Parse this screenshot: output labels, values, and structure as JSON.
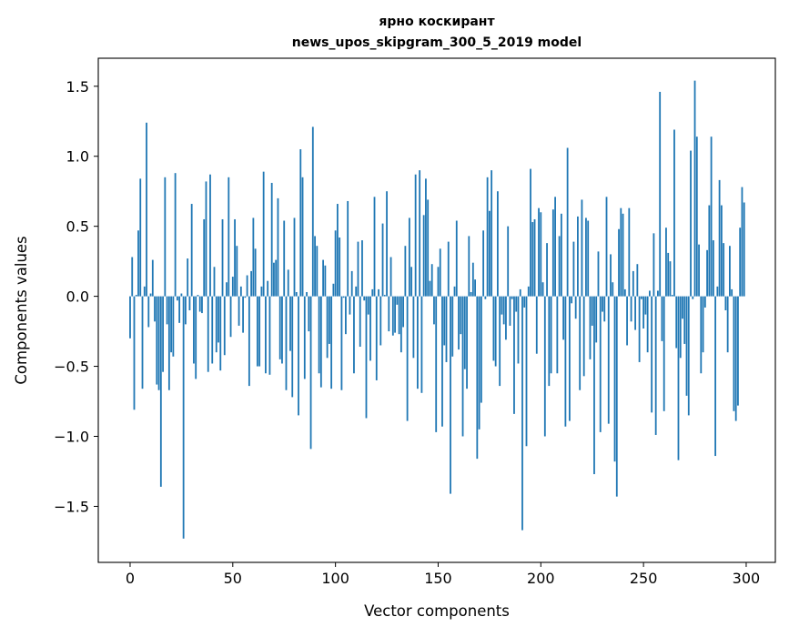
{
  "chart_data": {
    "type": "bar",
    "title": [
      "ярно коскирант",
      "news_upos_skipgram_300_5_2019 model"
    ],
    "xlabel": "Vector components",
    "ylabel": "Components values",
    "xlim": [
      -15.5,
      314.2
    ],
    "ylim": [
      -1.9,
      1.7
    ],
    "grid": false,
    "bar_color": "#1f77b4",
    "xticks": [
      {
        "value": 0,
        "label": "0"
      },
      {
        "value": 50,
        "label": "50"
      },
      {
        "value": 100,
        "label": "100"
      },
      {
        "value": 150,
        "label": "150"
      },
      {
        "value": 200,
        "label": "200"
      },
      {
        "value": 250,
        "label": "250"
      },
      {
        "value": 300,
        "label": "300"
      }
    ],
    "yticks": [
      {
        "value": -1.5,
        "label": "−1.5"
      },
      {
        "value": -1.0,
        "label": "−1.0"
      },
      {
        "value": -0.5,
        "label": "−0.5"
      },
      {
        "value": 0.0,
        "label": "0.0"
      },
      {
        "value": 0.5,
        "label": "0.5"
      },
      {
        "value": 1.0,
        "label": "1.0"
      },
      {
        "value": 1.5,
        "label": "1.5"
      }
    ],
    "values": [
      -0.3,
      0.28,
      -0.81,
      0.01,
      0.47,
      0.84,
      -0.66,
      0.07,
      1.24,
      -0.22,
      0.02,
      0.26,
      -0.18,
      -0.63,
      -0.67,
      -1.36,
      -0.54,
      0.85,
      -0.2,
      -0.67,
      -0.4,
      -0.43,
      0.88,
      -0.03,
      -0.19,
      0.02,
      -1.73,
      -0.2,
      0.27,
      -0.1,
      0.66,
      -0.48,
      -0.59,
      0.01,
      -0.11,
      -0.12,
      0.55,
      0.82,
      -0.54,
      0.87,
      -0.48,
      0.21,
      -0.4,
      -0.33,
      -0.53,
      0.55,
      -0.42,
      0.1,
      0.85,
      -0.29,
      0.14,
      0.55,
      0.36,
      -0.21,
      0.07,
      -0.26,
      -0.01,
      0.15,
      -0.64,
      0.18,
      0.56,
      0.34,
      -0.5,
      -0.5,
      0.07,
      0.89,
      -0.55,
      0.11,
      -0.56,
      0.81,
      0.24,
      0.26,
      0.7,
      -0.45,
      -0.48,
      0.54,
      -0.67,
      0.19,
      -0.39,
      -0.72,
      0.56,
      0.03,
      -0.85,
      1.05,
      0.85,
      -0.59,
      0.03,
      -0.25,
      -1.09,
      1.21,
      0.43,
      0.36,
      -0.55,
      -0.65,
      0.26,
      0.22,
      -0.44,
      -0.34,
      -0.66,
      0.09,
      0.47,
      0.66,
      0.42,
      -0.67,
      -0.01,
      -0.27,
      0.68,
      -0.13,
      0.18,
      -0.55,
      0.07,
      0.39,
      -0.36,
      0.4,
      -0.03,
      -0.87,
      -0.13,
      -0.46,
      0.05,
      0.71,
      -0.6,
      0.05,
      -0.35,
      0.52,
      0.01,
      0.75,
      -0.25,
      0.28,
      -0.28,
      -0.26,
      -0.06,
      -0.27,
      -0.4,
      -0.22,
      0.36,
      -0.89,
      0.56,
      0.21,
      -0.44,
      0.87,
      -0.66,
      0.9,
      -0.69,
      0.58,
      0.84,
      0.69,
      0.11,
      0.23,
      -0.2,
      -0.97,
      0.21,
      0.34,
      -0.93,
      -0.35,
      -0.47,
      0.39,
      -1.41,
      -0.43,
      0.07,
      0.54,
      -0.38,
      -0.27,
      -1.0,
      -0.52,
      -0.66,
      0.43,
      0.03,
      0.24,
      0.12,
      -1.16,
      -0.95,
      -0.76,
      0.47,
      -0.02,
      0.85,
      0.61,
      0.9,
      -0.46,
      -0.5,
      0.75,
      -0.64,
      -0.13,
      -0.2,
      -0.31,
      0.5,
      -0.21,
      -0.02,
      -0.84,
      -0.11,
      -0.48,
      0.05,
      -1.67,
      -0.08,
      -1.07,
      0.07,
      0.91,
      0.53,
      0.55,
      -0.41,
      0.63,
      0.6,
      0.1,
      -1.0,
      0.38,
      -0.64,
      -0.55,
      0.62,
      0.71,
      -0.55,
      0.43,
      0.59,
      -0.31,
      -0.93,
      1.06,
      -0.89,
      -0.05,
      0.39,
      -0.16,
      0.57,
      -0.67,
      0.69,
      -0.57,
      0.56,
      0.54,
      -0.45,
      -0.21,
      -1.27,
      -0.33,
      0.32,
      -0.97,
      -0.11,
      -0.18,
      0.71,
      -0.91,
      0.3,
      0.1,
      -1.18,
      -1.43,
      0.48,
      0.63,
      0.59,
      0.05,
      -0.35,
      0.63,
      -0.18,
      0.18,
      -0.24,
      0.23,
      -0.47,
      -0.02,
      -0.23,
      -0.13,
      -0.4,
      0.04,
      -0.83,
      0.45,
      -0.99,
      0.04,
      1.46,
      -0.32,
      -0.82,
      0.49,
      0.31,
      0.25,
      0.01,
      1.19,
      -0.37,
      -1.17,
      -0.44,
      -0.16,
      -0.34,
      -0.71,
      -0.85,
      1.04,
      -0.02,
      1.54,
      1.14,
      0.37,
      -0.55,
      -0.4,
      -0.08,
      0.33,
      0.65,
      1.14,
      0.4,
      -1.14,
      0.07,
      0.83,
      0.65,
      0.38,
      -0.1,
      -0.4,
      0.36,
      0.05,
      -0.82,
      -0.89,
      -0.78,
      0.49,
      0.78,
      0.67
    ]
  }
}
